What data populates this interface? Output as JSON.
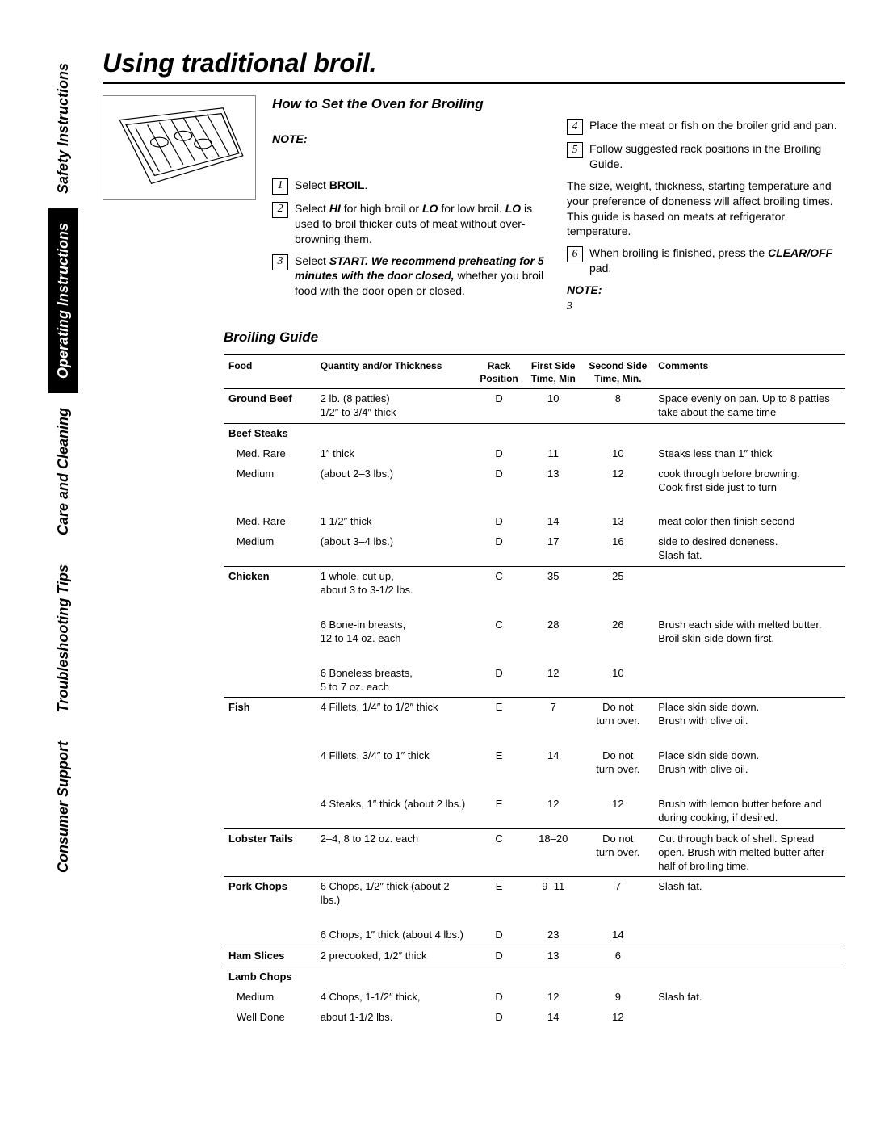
{
  "sideTabs": [
    {
      "label": "Safety Instructions",
      "active": false
    },
    {
      "label": "Operating Instructions",
      "active": true
    },
    {
      "label": "Care and Cleaning",
      "active": false
    },
    {
      "label": "Troubleshooting Tips",
      "active": false
    },
    {
      "label": "Consumer Support",
      "active": false
    }
  ],
  "title": "Using traditional broil.",
  "sectionHeading": "How to Set the Oven for Broiling",
  "noteLabel": "NOTE:",
  "steps_left": [
    {
      "n": "1",
      "html": "Select <b>BROIL</b>."
    },
    {
      "n": "2",
      "html": "Select <b><i>HI</i></b> for high broil or <b><i>LO</i></b> for low broil. <b><i>LO</i></b> is used to broil thicker cuts of meat without over-browning them."
    },
    {
      "n": "3",
      "html": "Select <b><i>START. We recommend preheating for 5 minutes with the door closed,</i></b> whether you broil food with the door open or closed."
    }
  ],
  "steps_right": [
    {
      "n": "4",
      "html": "Place the meat or fish on the broiler grid and pan."
    },
    {
      "n": "5",
      "html": "Follow suggested rack positions in the <span style='font-family:Arial'>Broiling Guide</span>."
    }
  ],
  "midParagraph": "The size, weight, thickness, starting temperature and your preference of doneness will affect broiling times. This guide is based on meats at refrigerator temperature.",
  "step6": {
    "n": "6",
    "html": "When broiling is finished, press the <b><i>CLEAR/OFF</i></b> pad."
  },
  "note2": "NOTE:",
  "note2num": "3",
  "guideHeading": "Broiling Guide",
  "tableHeaders": {
    "food": "Food",
    "qty": "Quantity and/or Thickness",
    "rack": "Rack Position",
    "t1": "First Side Time, Min",
    "t2": "Second Side Time, Min.",
    "cmt": "Comments"
  },
  "rows": [
    {
      "food": "Ground Beef",
      "qty": "2 lb. (8 patties)\n1/2″ to 3/4″ thick",
      "rack": "D",
      "t1": "10",
      "t2": "8",
      "cmt": "Space evenly on pan. Up to 8 patties take about the same time",
      "newGroup": true
    },
    {
      "food": "Beef Steaks",
      "qty": "",
      "rack": "",
      "t1": "",
      "t2": "",
      "cmt": "",
      "newGroup": true
    },
    {
      "foodSub": "Med. Rare",
      "qty": "1″ thick",
      "rack": "D",
      "t1": "11",
      "t2": "10",
      "cmt": "Steaks less than 1″ thick"
    },
    {
      "foodSub": "Medium",
      "qty": "(about 2–3 lbs.)",
      "rack": "D",
      "t1": "13",
      "t2": "12",
      "cmt": "cook through before browning.\nCook first side just to turn"
    },
    {
      "spacer": true
    },
    {
      "foodSub": "Med. Rare",
      "qty": "1 1/2″ thick",
      "rack": "D",
      "t1": "14",
      "t2": "13",
      "cmt": "meat color then finish second"
    },
    {
      "foodSub": "Medium",
      "qty": "(about 3–4 lbs.)",
      "rack": "D",
      "t1": "17",
      "t2": "16",
      "cmt": "side to desired doneness.\nSlash fat."
    },
    {
      "food": "Chicken",
      "qty": "1 whole, cut up,\nabout 3 to 3-1/2 lbs.",
      "rack": "C",
      "t1": "35",
      "t2": "25",
      "cmt": "",
      "newGroup": true
    },
    {
      "spacer": true
    },
    {
      "qty": "6 Bone-in breasts,\n12 to 14 oz. each",
      "rack": "C",
      "t1": "28",
      "t2": "26",
      "cmt": "Brush each side with melted butter. Broil skin-side down first."
    },
    {
      "spacer": true
    },
    {
      "qty": "6 Boneless breasts,\n5 to 7 oz. each",
      "rack": "D",
      "t1": "12",
      "t2": "10",
      "cmt": ""
    },
    {
      "food": "Fish",
      "qty": "4 Fillets, 1/4″ to 1/2″ thick",
      "rack": "E",
      "t1": "7",
      "t2": "Do not\nturn over.",
      "cmt": "Place skin side down.\nBrush with olive oil.",
      "newGroup": true
    },
    {
      "spacer": true
    },
    {
      "qty": "4 Fillets, 3/4″ to 1″ thick",
      "rack": "E",
      "t1": "14",
      "t2": "Do not\nturn over.",
      "cmt": "Place skin side down.\nBrush with olive oil."
    },
    {
      "spacer": true
    },
    {
      "qty": "4 Steaks, 1″ thick (about 2 lbs.)",
      "rack": "E",
      "t1": "12",
      "t2": "12",
      "cmt": "Brush with lemon butter before and during cooking, if desired."
    },
    {
      "food": "Lobster Tails",
      "qty": "2–4, 8 to 12 oz. each",
      "rack": "C",
      "t1": "18–20",
      "t2": "Do not\nturn over.",
      "cmt": "Cut through back of shell. Spread open. Brush with melted butter after half of broiling time.",
      "newGroup": true
    },
    {
      "food": "Pork Chops",
      "qty": "6 Chops, 1/2″ thick (about 2 lbs.)",
      "rack": "E",
      "t1": "9–11",
      "t2": "7",
      "cmt": "\nSlash fat.",
      "newGroup": true
    },
    {
      "spacer": true
    },
    {
      "qty": "6 Chops, 1″ thick (about 4 lbs.)",
      "rack": "D",
      "t1": "23",
      "t2": "14",
      "cmt": ""
    },
    {
      "food": "Ham Slices",
      "qty": "2 precooked, 1/2″ thick",
      "rack": "D",
      "t1": "13",
      "t2": "6",
      "cmt": "",
      "newGroup": true
    },
    {
      "food": "Lamb Chops",
      "qty": "",
      "rack": "",
      "t1": "",
      "t2": "",
      "cmt": "",
      "newGroup": true
    },
    {
      "foodSub": "Medium",
      "qty": "4 Chops, 1-1/2″ thick,",
      "rack": "D",
      "t1": "12",
      "t2": "9",
      "cmt": "Slash fat."
    },
    {
      "foodSub": "Well Done",
      "qty": "about 1-1/2 lbs.",
      "rack": "D",
      "t1": "14",
      "t2": "12",
      "cmt": ""
    }
  ],
  "colors": {
    "text": "#000000",
    "bg": "#ffffff",
    "rule": "#000000"
  }
}
